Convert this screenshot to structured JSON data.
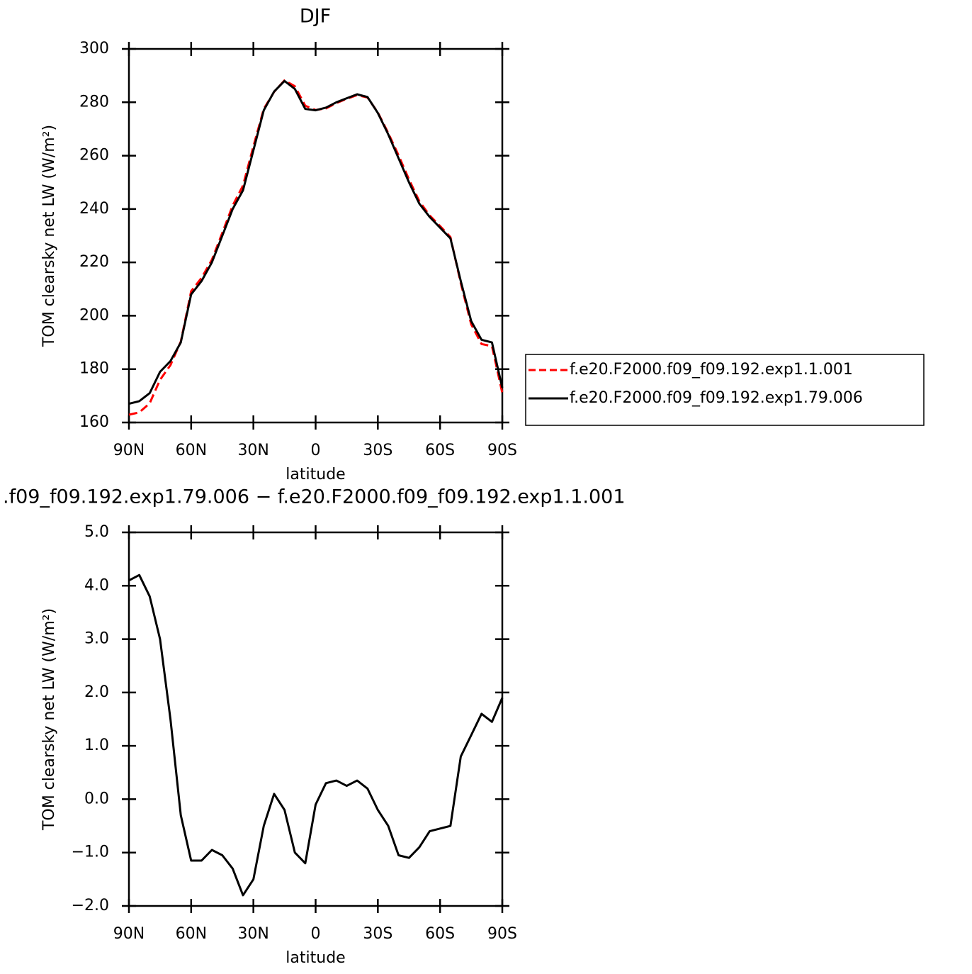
{
  "chart_data": [
    {
      "type": "line",
      "title": "DJF",
      "xlabel": "latitude",
      "ylabel": "TOM clearsky net LW (W/m²)",
      "x": [
        90,
        85,
        80,
        75,
        70,
        65,
        60,
        55,
        50,
        45,
        40,
        35,
        30,
        25,
        20,
        15,
        10,
        5,
        0,
        -5,
        -10,
        -15,
        -20,
        -25,
        -30,
        -35,
        -40,
        -45,
        -50,
        -55,
        -60,
        -65,
        -70,
        -75,
        -80,
        -85,
        -90
      ],
      "series": [
        {
          "name": "f.e20.F2000.f09_f09.192.exp1.1.001",
          "color": "#ff0000",
          "dash": true,
          "values": [
            162.9,
            163.8,
            167.2,
            176,
            181.5,
            190.3,
            209.2,
            214.2,
            221,
            231.1,
            241.3,
            248.8,
            263.5,
            277.5,
            283.9,
            288.2,
            286,
            278.7,
            277.1,
            277.7,
            279.7,
            281.3,
            282.7,
            281.8,
            276.2,
            268.5,
            260.1,
            251.1,
            242.9,
            237.6,
            233.6,
            229.5,
            212.2,
            196.8,
            189.4,
            188.6,
            171.1
          ]
        },
        {
          "name": "f.e20.F2000.f09_f09.192.exp1.79.006",
          "color": "#000000",
          "dash": false,
          "values": [
            167,
            168,
            171,
            179,
            183,
            190,
            208,
            213,
            220,
            230,
            240,
            247,
            262,
            277,
            284,
            288,
            285,
            277.5,
            277,
            278,
            280,
            281.5,
            283,
            282,
            276,
            268,
            259,
            250,
            242,
            237,
            233,
            229,
            213,
            198,
            191,
            190,
            173
          ]
        }
      ],
      "xlim": [
        90,
        -90
      ],
      "xticks": [
        {
          "value": 90,
          "label": "90N"
        },
        {
          "value": 60,
          "label": "60N"
        },
        {
          "value": 30,
          "label": "30N"
        },
        0,
        {
          "value": -30,
          "label": "30S"
        },
        {
          "value": -60,
          "label": "60S"
        },
        {
          "value": -90,
          "label": "90S"
        }
      ],
      "ylim": [
        160,
        300
      ],
      "yticks": [
        160,
        180,
        200,
        220,
        240,
        260,
        280,
        300
      ],
      "legend": "right"
    },
    {
      "type": "line",
      "title": ".f09_f09.192.exp1.79.006 − f.e20.F2000.f09_f09.192.exp1.1.001",
      "xlabel": "latitude",
      "ylabel": "TOM clearsky net LW (W/m²)",
      "x": [
        90,
        85,
        80,
        75,
        70,
        65,
        60,
        55,
        50,
        45,
        40,
        35,
        30,
        25,
        20,
        15,
        10,
        5,
        0,
        -5,
        -10,
        -15,
        -20,
        -25,
        -30,
        -35,
        -40,
        -45,
        -50,
        -55,
        -60,
        -65,
        -70,
        -75,
        -80,
        -85,
        -90
      ],
      "series": [
        {
          "color": "#000000",
          "dash": false,
          "values": [
            4.1,
            4.2,
            3.8,
            3.0,
            1.5,
            -0.3,
            -1.15,
            -1.15,
            -0.95,
            -1.05,
            -1.3,
            -1.8,
            -1.5,
            -0.5,
            0.1,
            -0.2,
            -1.0,
            -1.2,
            -0.1,
            0.3,
            0.35,
            0.25,
            0.35,
            0.2,
            -0.2,
            -0.5,
            -1.05,
            -1.1,
            -0.9,
            -0.6,
            -0.55,
            -0.5,
            0.8,
            1.2,
            1.6,
            1.45,
            1.9
          ]
        }
      ],
      "xlim": [
        90,
        -90
      ],
      "xticks": [
        {
          "value": 90,
          "label": "90N"
        },
        {
          "value": 60,
          "label": "60N"
        },
        {
          "value": 30,
          "label": "30N"
        },
        0,
        {
          "value": -30,
          "label": "30S"
        },
        {
          "value": -60,
          "label": "60S"
        },
        {
          "value": -90,
          "label": "90S"
        }
      ],
      "ylim": [
        -2,
        5
      ],
      "yticks": [
        {
          "value": -2,
          "label": "−2.0"
        },
        {
          "value": -1,
          "label": "−1.0"
        },
        {
          "value": 0,
          "label": "0.0"
        },
        {
          "value": 1,
          "label": "1.0"
        },
        {
          "value": 2,
          "label": "2.0"
        },
        {
          "value": 3,
          "label": "3.0"
        },
        {
          "value": 4,
          "label": "4.0"
        },
        {
          "value": 5,
          "label": "5.0"
        }
      ]
    }
  ]
}
